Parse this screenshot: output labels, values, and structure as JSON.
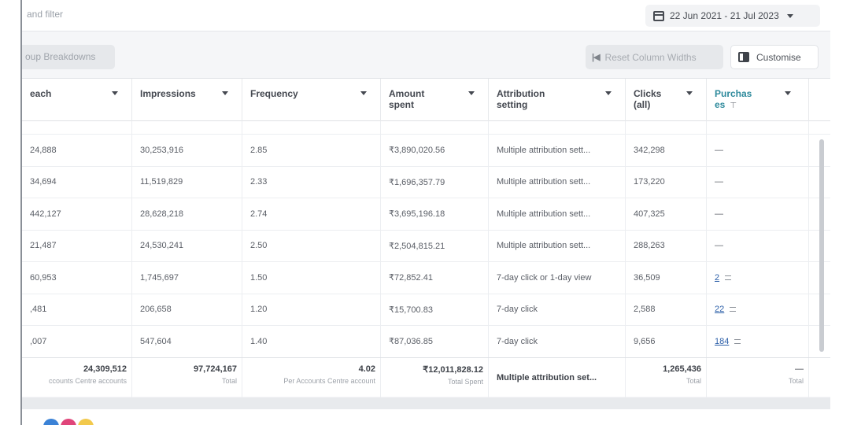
{
  "search": {
    "placeholder": "and filter"
  },
  "date_range": {
    "label": "22 Jun 2021 - 21 Jul 2023"
  },
  "toolbar": {
    "group_label": "oup Breakdowns",
    "reset_label": "Reset Column Widths",
    "reset_icon": "|◀",
    "customise_label": "Customise"
  },
  "columns": [
    {
      "label": "each"
    },
    {
      "label": "Impressions"
    },
    {
      "label": "Frequency"
    },
    {
      "label": "Amount spent"
    },
    {
      "label": "Attribution setting"
    },
    {
      "label": "Clicks (all)"
    },
    {
      "label": "Purchas es",
      "pin": "⊤"
    }
  ],
  "rows": [
    {
      "reach": "24,888",
      "impressions": "30,253,916",
      "frequency": "2.85",
      "amount": "₹3,890,020.56",
      "attribution": "Multiple attribution sett...",
      "clicks": "342,298",
      "purchases": "—"
    },
    {
      "reach": "34,694",
      "impressions": "11,519,829",
      "frequency": "2.33",
      "amount": "₹1,696,357.79",
      "attribution": "Multiple attribution sett...",
      "clicks": "173,220",
      "purchases": "—"
    },
    {
      "reach": "442,127",
      "impressions": "28,628,218",
      "frequency": "2.74",
      "amount": "₹3,695,196.18",
      "attribution": "Multiple attribution sett...",
      "clicks": "407,325",
      "purchases": "—"
    },
    {
      "reach": "21,487",
      "impressions": "24,530,241",
      "frequency": "2.50",
      "amount": "₹2,504,815.21",
      "attribution": "Multiple attribution sett...",
      "clicks": "288,263",
      "purchases": "—"
    },
    {
      "reach": "60,953",
      "impressions": "1,745,697",
      "frequency": "1.50",
      "amount": "₹72,852.41",
      "attribution": "7-day click or 1-day view",
      "clicks": "36,509",
      "purchases": "2"
    },
    {
      "reach": ",481",
      "impressions": "206,658",
      "frequency": "1.20",
      "amount": "₹15,700.83",
      "attribution": "7-day click",
      "clicks": "2,588",
      "purchases": "22"
    },
    {
      "reach": ",007",
      "impressions": "547,604",
      "frequency": "1.40",
      "amount": "₹87,036.85",
      "attribution": "7-day click",
      "clicks": "9,656",
      "purchases": "184"
    }
  ],
  "totals": {
    "reach": {
      "value": "24,309,512",
      "sub": "ccounts Centre accounts"
    },
    "impressions": {
      "value": "97,724,167",
      "sub": "Total"
    },
    "frequency": {
      "value": "4.02",
      "sub": "Per Accounts Centre account"
    },
    "amount": {
      "value": "₹12,011,828.12",
      "sub": "Total Spent"
    },
    "attribution": {
      "value": "Multiple attribution set..."
    },
    "clicks": {
      "value": "1,265,436",
      "sub": "Total"
    },
    "purchases": {
      "value": "—",
      "sub": "Total"
    }
  },
  "colors": {
    "accent_teal": "#2e8a9c",
    "link_blue": "#2c5fa8"
  }
}
